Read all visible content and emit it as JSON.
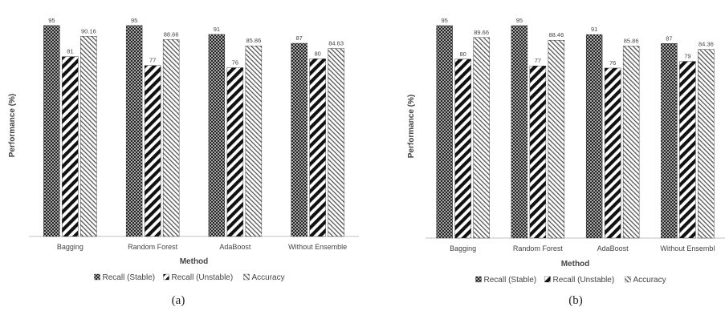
{
  "chart_data": [
    {
      "type": "bar",
      "categories": [
        "Bagging",
        "Random Forest",
        "AdaBoost",
        "Without Ensemble"
      ],
      "series": [
        {
          "name": "Recall (Stable)",
          "values": [
            95,
            95,
            91,
            87
          ]
        },
        {
          "name": "Recall (Unstable)",
          "values": [
            81,
            77,
            76,
            80
          ]
        },
        {
          "name": "Accuracy",
          "values": [
            90.16,
            88.66,
            85.86,
            84.63
          ]
        }
      ],
      "data_labels": {
        "Recall (Stable)": [
          "95",
          "95",
          "91",
          "87"
        ],
        "Recall (Unstable)": [
          "81",
          "77",
          "76",
          "80"
        ],
        "Accuracy": [
          "90.16",
          "88.66",
          "85.86",
          "84.63"
        ]
      },
      "xlabel": "Method",
      "ylabel": "Performance (%)",
      "ylim": [
        0,
        100
      ],
      "grid": false,
      "legend_placement": "bottom",
      "caption": "(a)"
    },
    {
      "type": "bar",
      "categories": [
        "Bagging",
        "Random Forest",
        "AdaBoost",
        "Without Ensembl"
      ],
      "series": [
        {
          "name": "Recall (Stable)",
          "values": [
            95,
            95,
            91,
            87
          ]
        },
        {
          "name": "Recall (Unstable)",
          "values": [
            80,
            77,
            76,
            79
          ]
        },
        {
          "name": "Accuracy",
          "values": [
            89.66,
            88.46,
            85.86,
            84.36
          ]
        }
      ],
      "data_labels": {
        "Recall (Stable)": [
          "95",
          "95",
          "91",
          "87"
        ],
        "Recall (Unstable)": [
          "80",
          "77",
          "76",
          "79"
        ],
        "Accuracy": [
          "89.66",
          "88.46",
          "85.86",
          "84.36"
        ]
      },
      "xlabel": "Method",
      "ylabel": "Performance (%)",
      "ylim": [
        0,
        100
      ],
      "grid": false,
      "legend_placement": "bottom",
      "caption": "(b)"
    }
  ]
}
